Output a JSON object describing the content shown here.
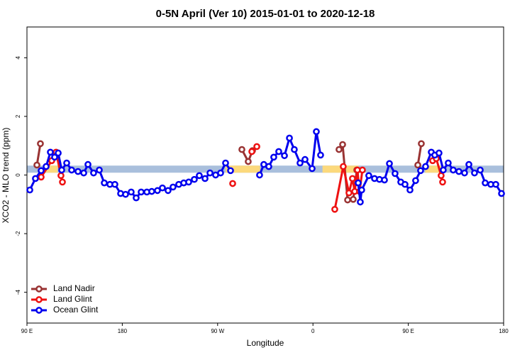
{
  "chart_data": {
    "type": "line",
    "title": "0-5N April (Ver 10)   2015-01-01 to 2020-12-18",
    "xlabel": "Longitude",
    "ylabel": "XCO2 - MLO trend (ppm)",
    "xlim": [
      90,
      540
    ],
    "xticks": [
      {
        "value": 90,
        "label": "90 E"
      },
      180,
      {
        "value": 270,
        "label": "90 W"
      },
      {
        "value": 360,
        "label": "0"
      },
      {
        "value": 450,
        "label": "90 E"
      },
      {
        "value": 540,
        "label": "180"
      }
    ],
    "ylim": [
      -5.05,
      5.05
    ],
    "yticks": [
      -4,
      -2,
      0,
      2,
      4
    ],
    "legend": "bottom-left",
    "band": {
      "y": 0.2,
      "color": "#a9bfdc",
      "segments": [
        {
          "x": [
            108,
            119
          ],
          "color": "#fcd97c"
        },
        {
          "x": [
            277.5,
            310
          ],
          "color": "#fcd97c"
        },
        {
          "x": [
            369,
            403
          ],
          "color": "#fcd97c"
        },
        {
          "x": [
            466,
            481
          ],
          "color": "#fcd97c"
        }
      ]
    },
    "series": [
      {
        "name": "Land Nadir",
        "color": "#993333",
        "x": [
          99.4,
          102.7,
          null,
          292.9,
          298.9,
          302.9,
          null,
          384.6,
          388,
          392.7,
          398,
          401.4,
          null,
          459,
          462.3
        ],
        "values": [
          0.34,
          1.07,
          null,
          0.87,
          0.46,
          0.83,
          null,
          0.87,
          1.04,
          -0.85,
          -0.83,
          0.17,
          null,
          0.34,
          1.07
        ]
      },
      {
        "name": "Land Glint",
        "color": "#ee1111",
        "x": [
          103.4,
          113.4,
          117.5,
          122.1,
          123.5,
          null,
          284.2,
          null,
          302.3,
          307,
          null,
          380.6,
          388.6,
          394,
          397.3,
          399.4,
          402,
          404,
          406.7,
          null,
          473,
          476.4,
          481,
          482.4
        ],
        "values": [
          -0.07,
          0.49,
          0.78,
          -0.02,
          -0.24,
          null,
          -0.29,
          null,
          0.8,
          0.97,
          null,
          -1.17,
          0.29,
          -0.61,
          -0.12,
          -0.56,
          0.17,
          -0.56,
          0.17,
          null,
          0.49,
          0.56,
          -0.02,
          -0.24
        ]
      },
      {
        "name": "Ocean Glint",
        "color": "#0000ee",
        "x": [
          92.7,
          98,
          103.4,
          108.1,
          112.1,
          116.1,
          119.5,
          122.8,
          127.5,
          132.2,
          138.2,
          143.6,
          147.6,
          152.9,
          158.3,
          163,
          168.3,
          173,
          178.4,
          183.1,
          188.4,
          193.1,
          197.8,
          203.2,
          207.8,
          213.2,
          217.9,
          223.2,
          227.9,
          233.3,
          238,
          242.7,
          248,
          252.7,
          258.1,
          262.8,
          268.1,
          272.8,
          277.5,
          282.2,
          null,
          309.6,
          313.6,
          318.3,
          323,
          327.7,
          333.1,
          337.8,
          342.4,
          347.8,
          352.5,
          359.2,
          363.2,
          367.2,
          null,
          402.7,
          404.7,
          406,
          412.7,
          418.1,
          422.8,
          427.5,
          432.2,
          437.5,
          442.9,
          446.9,
          451.6,
          456.9,
          461.6,
          466.3,
          471.7,
          475,
          479,
          483,
          487.7,
          492.4,
          497.8,
          503.1,
          507.2,
          512.5,
          517.9,
          522.6,
          527.9,
          532.6,
          538
        ],
        "values": [
          -0.51,
          -0.12,
          0.15,
          0.29,
          0.78,
          0.61,
          0.75,
          0.17,
          0.41,
          0.17,
          0.12,
          0.07,
          0.36,
          0.07,
          0.17,
          -0.27,
          -0.32,
          -0.32,
          -0.63,
          -0.66,
          -0.58,
          -0.78,
          -0.58,
          -0.58,
          -0.56,
          -0.53,
          -0.44,
          -0.53,
          -0.41,
          -0.32,
          -0.27,
          -0.24,
          -0.15,
          -0.02,
          -0.12,
          0.07,
          0,
          0.07,
          0.41,
          0.15,
          null,
          0,
          0.36,
          0.29,
          0.61,
          0.8,
          0.66,
          1.26,
          0.87,
          0.41,
          0.53,
          0.22,
          1.48,
          0.68,
          null,
          -0.27,
          -0.92,
          -0.51,
          -0.02,
          -0.12,
          -0.15,
          -0.17,
          0.39,
          0.05,
          -0.24,
          -0.32,
          -0.51,
          -0.19,
          0.15,
          0.29,
          0.78,
          0.68,
          0.75,
          0.17,
          0.41,
          0.17,
          0.12,
          0.07,
          0.36,
          0.07,
          0.17,
          -0.27,
          -0.32,
          -0.32,
          -0.63
        ]
      }
    ]
  }
}
